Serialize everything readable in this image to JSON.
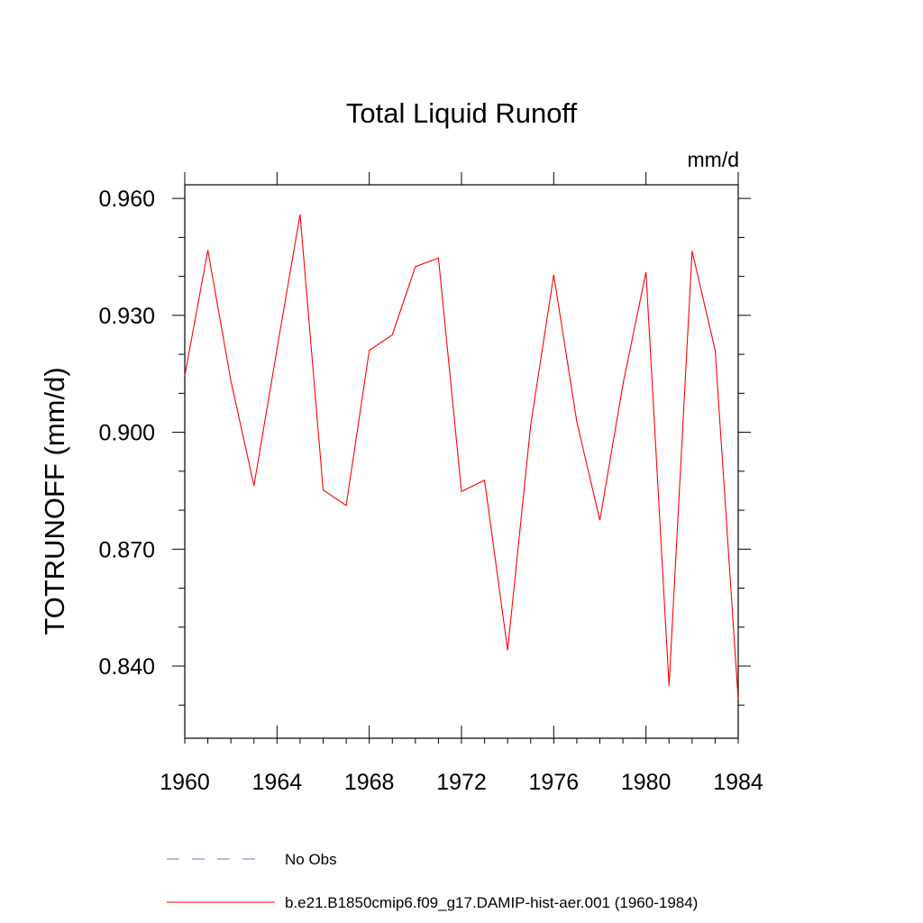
{
  "chart_data": {
    "type": "line",
    "title": "Total Liquid Runoff",
    "units_label": "mm/d",
    "ylabel": "TOTRUNOFF  (mm/d)",
    "xlabel": "",
    "xlim": [
      1960,
      1984
    ],
    "ylim": [
      0.8215,
      0.9635
    ],
    "x_ticks": [
      1960,
      1964,
      1968,
      1972,
      1976,
      1980,
      1984
    ],
    "x_tick_labels": [
      "1960",
      "1964",
      "1968",
      "1972",
      "1976",
      "1980",
      "1984"
    ],
    "y_ticks": [
      0.84,
      0.87,
      0.9,
      0.93,
      0.96
    ],
    "y_tick_labels": [
      "0.840",
      "0.870",
      "0.900",
      "0.930",
      "0.960"
    ],
    "y_minor_step": 0.01,
    "grid": false,
    "legend_position": "bottom",
    "series": [
      {
        "name": "b.e21.B1850cmip6.f09_g17.DAMIP-hist-aer.001 (1960-1984)",
        "color": "#ff0000",
        "style": "solid",
        "x": [
          1960,
          1961,
          1962,
          1963,
          1964,
          1965,
          1966,
          1967,
          1968,
          1969,
          1970,
          1971,
          1972,
          1973,
          1974,
          1975,
          1976,
          1977,
          1978,
          1979,
          1980,
          1981,
          1982,
          1983,
          1984
        ],
        "values": [
          0.9145,
          0.9467,
          0.9132,
          0.8863,
          0.9214,
          0.9559,
          0.8852,
          0.8812,
          0.921,
          0.925,
          0.9425,
          0.9447,
          0.8848,
          0.8877,
          0.8441,
          0.9018,
          0.9404,
          0.9027,
          0.8774,
          0.9123,
          0.9411,
          0.8349,
          0.9465,
          0.921,
          0.8314
        ]
      }
    ],
    "legend": [
      {
        "label": "No Obs",
        "color": "#7070c0",
        "style": "dashed"
      },
      {
        "label": "b.e21.B1850cmip6.f09_g17.DAMIP-hist-aer.001 (1960-1984)",
        "color": "#ff0000",
        "style": "solid"
      }
    ]
  }
}
